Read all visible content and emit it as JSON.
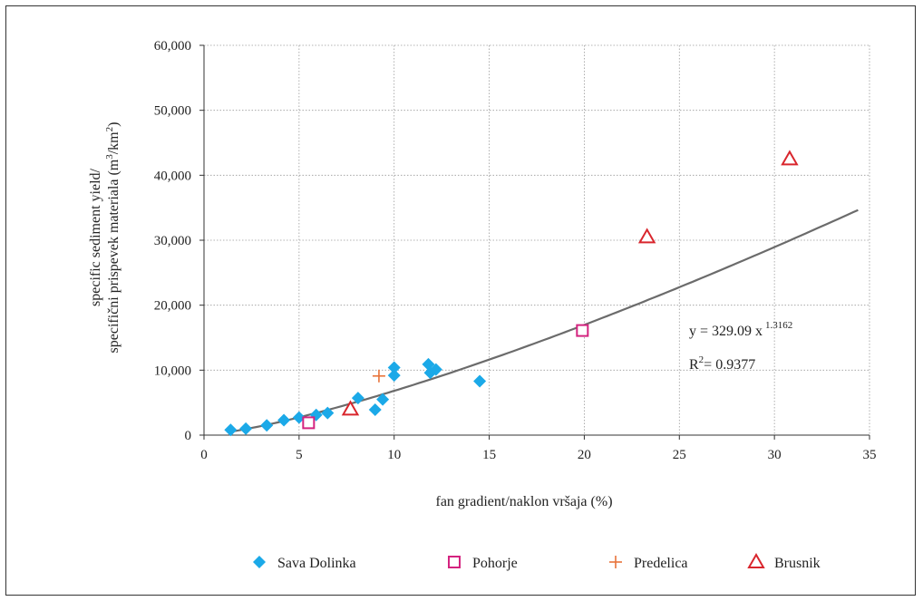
{
  "chart_data": {
    "type": "scatter",
    "xlabel": "fan gradient/naklon vršaja (%)",
    "ylabel_line1": "specific sediment yield/",
    "ylabel_line2": "specifični prispevek materiala (m",
    "ylabel_sup1": "3",
    "ylabel_mid": "/km",
    "ylabel_sup2": "2",
    "ylabel_end": ")",
    "xlim": [
      0,
      35
    ],
    "ylim": [
      0,
      60000
    ],
    "x_ticks": [
      0,
      5,
      10,
      15,
      20,
      25,
      30,
      35
    ],
    "y_ticks": [
      0,
      10000,
      20000,
      30000,
      40000,
      50000,
      60000
    ],
    "x_tick_labels": [
      "0",
      "5",
      "10",
      "15",
      "20",
      "25",
      "30",
      "35"
    ],
    "y_tick_labels": [
      "0",
      "10,000",
      "20,000",
      "30,000",
      "40,000",
      "50,000",
      "60,000"
    ],
    "grid": true,
    "legend_position": "bottom",
    "series": [
      {
        "name": "Sava Dolinka",
        "marker": "diamond",
        "color": "#1ba9e8",
        "points": [
          [
            1.4,
            800
          ],
          [
            2.2,
            1000
          ],
          [
            3.3,
            1500
          ],
          [
            4.2,
            2300
          ],
          [
            5.0,
            2700
          ],
          [
            5.9,
            3100
          ],
          [
            6.5,
            3400
          ],
          [
            8.1,
            5700
          ],
          [
            9.0,
            3900
          ],
          [
            9.4,
            5500
          ],
          [
            10.0,
            9200
          ],
          [
            10.0,
            10400
          ],
          [
            11.8,
            10900
          ],
          [
            11.9,
            9600
          ],
          [
            12.2,
            10100
          ],
          [
            14.5,
            8300
          ]
        ]
      },
      {
        "name": "Pohorje",
        "marker": "square",
        "color": "#d4237f",
        "points": [
          [
            5.5,
            1900
          ],
          [
            19.9,
            16100
          ]
        ]
      },
      {
        "name": "Predelica",
        "marker": "plus",
        "color": "#e8733a",
        "points": [
          [
            9.2,
            9100
          ]
        ]
      },
      {
        "name": "Brusnik",
        "marker": "triangle",
        "color": "#d9262d",
        "points": [
          [
            7.7,
            4000
          ],
          [
            23.3,
            30500
          ],
          [
            30.8,
            42500
          ]
        ]
      }
    ],
    "trendline": {
      "type": "power",
      "a": 329.09,
      "b": 1.3162,
      "x_range": [
        1.4,
        34.4
      ],
      "color": "#6b6b6b",
      "equation_main": "y = 329.09 x",
      "equation_exp": "1.3162",
      "r2_prefix": "R",
      "r2_sup": "2",
      "r2_value": "= 0.9377"
    }
  }
}
